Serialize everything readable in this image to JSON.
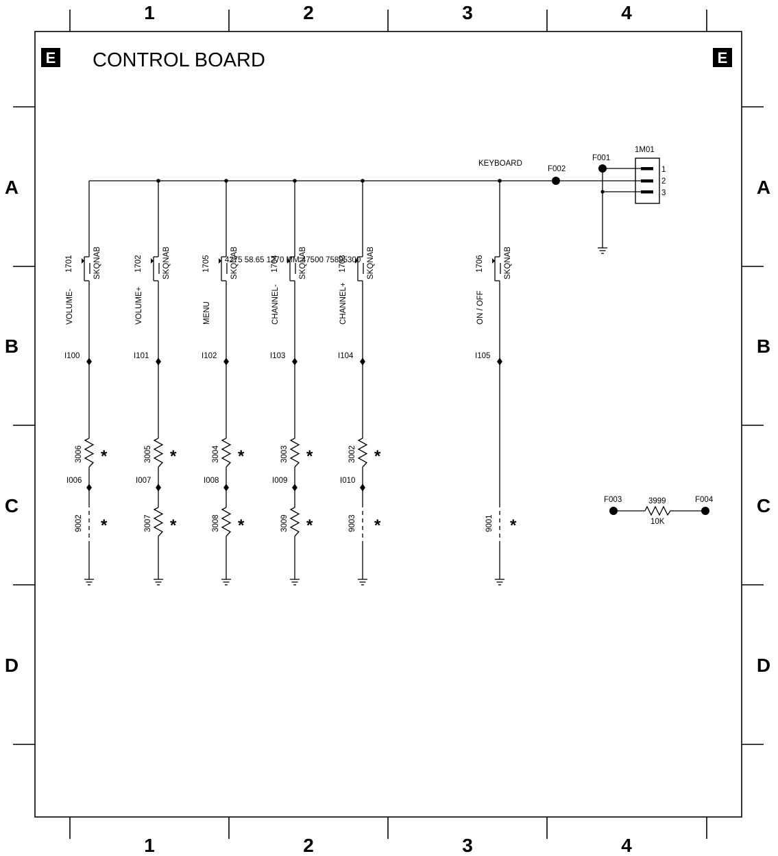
{
  "title": "CONTROL BOARD",
  "corner_badge": "E",
  "column_labels": [
    "1",
    "2",
    "3",
    "4"
  ],
  "row_labels": [
    "A",
    "B",
    "C",
    "D"
  ],
  "net_label": "KEYBOARD",
  "test_points": {
    "f001": "F001",
    "f002": "F002",
    "f003": "F003",
    "f004": "F004"
  },
  "connector": {
    "ref": "1M01",
    "pins": [
      "1",
      "2",
      "3"
    ]
  },
  "switch_part": "SKQNAB",
  "stray_text": "4275 58.65 1270 MM 47500 75895300",
  "branches": [
    {
      "ref": "1701",
      "func": "VOLUME-",
      "node": "I100",
      "upper": "3006",
      "lower_node": "I006",
      "lower": "9002",
      "lower_type": "jumper",
      "star1": "*",
      "star2": "*"
    },
    {
      "ref": "1702",
      "func": "VOLUME+",
      "node": "I101",
      "upper": "3005",
      "lower_node": "I007",
      "lower": "3007",
      "lower_type": "resistor",
      "star1": "*",
      "star2": "*"
    },
    {
      "ref": "1705",
      "func": "MENU",
      "node": "I102",
      "upper": "3004",
      "lower_node": "I008",
      "lower": "3008",
      "lower_type": "resistor",
      "star1": "*",
      "star2": "*"
    },
    {
      "ref": "1704",
      "func": "CHANNEL-",
      "node": "I103",
      "upper": "3003",
      "lower_node": "I009",
      "lower": "3009",
      "lower_type": "resistor",
      "star1": "*",
      "star2": "*"
    },
    {
      "ref": "1703",
      "func": "CHANNEL+",
      "node": "I104",
      "upper": "3002",
      "lower_node": "I010",
      "lower": "9003",
      "lower_type": "jumper",
      "star1": "*",
      "star2": "*"
    },
    {
      "ref": "1706",
      "func": "ON / OFF",
      "node": "I105",
      "upper": "",
      "lower_node": "",
      "lower": "9001",
      "lower_type": "jumper",
      "star1": "",
      "star2": "*"
    }
  ],
  "resistor_3999": {
    "ref": "3999",
    "value": "10K"
  }
}
